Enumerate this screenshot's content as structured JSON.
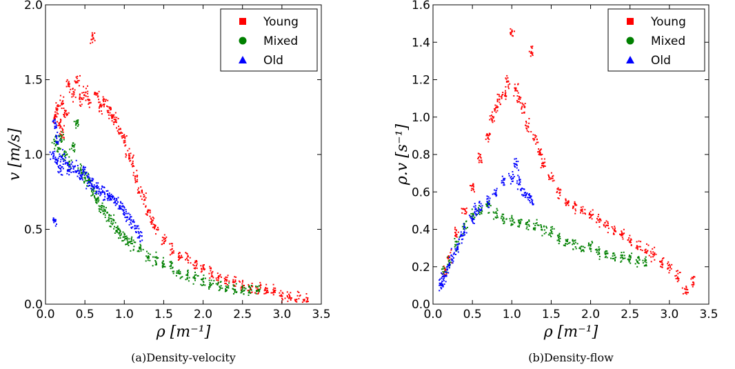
{
  "chart_data": [
    {
      "type": "scatter",
      "caption": "(a)Density-velocity",
      "xlabel": "ρ [m⁻¹]",
      "ylabel": "v [m/s]",
      "xlim": [
        0.0,
        3.5
      ],
      "ylim": [
        0.0,
        2.0
      ],
      "xticks": [
        "0.0",
        "0.5",
        "1.0",
        "1.5",
        "2.0",
        "2.5",
        "3.0",
        "3.5"
      ],
      "yticks": [
        "0.0",
        "0.5",
        "1.0",
        "1.5",
        "2.0"
      ],
      "legend_position": "top-right",
      "grid": false,
      "series": [
        {
          "name": "Young",
          "color": "#ff0000",
          "marker": "square",
          "points": [
            [
              0.12,
              1.25
            ],
            [
              0.15,
              1.3
            ],
            [
              0.18,
              1.2
            ],
            [
              0.2,
              1.35
            ],
            [
              0.22,
              1.15
            ],
            [
              0.25,
              1.28
            ],
            [
              0.3,
              1.45
            ],
            [
              0.35,
              1.4
            ],
            [
              0.4,
              1.5
            ],
            [
              0.45,
              1.38
            ],
            [
              0.5,
              1.42
            ],
            [
              0.55,
              1.35
            ],
            [
              0.6,
              1.78
            ],
            [
              0.65,
              1.4
            ],
            [
              0.7,
              1.32
            ],
            [
              0.75,
              1.35
            ],
            [
              0.8,
              1.3
            ],
            [
              0.85,
              1.25
            ],
            [
              0.9,
              1.22
            ],
            [
              0.95,
              1.15
            ],
            [
              1.0,
              1.1
            ],
            [
              1.05,
              1.0
            ],
            [
              1.1,
              0.95
            ],
            [
              1.15,
              0.85
            ],
            [
              1.2,
              0.75
            ],
            [
              1.25,
              0.7
            ],
            [
              1.3,
              0.62
            ],
            [
              1.35,
              0.55
            ],
            [
              1.4,
              0.5
            ],
            [
              1.5,
              0.42
            ],
            [
              1.6,
              0.36
            ],
            [
              1.7,
              0.32
            ],
            [
              1.8,
              0.3
            ],
            [
              1.9,
              0.27
            ],
            [
              2.0,
              0.24
            ],
            [
              2.1,
              0.21
            ],
            [
              2.2,
              0.18
            ],
            [
              2.3,
              0.16
            ],
            [
              2.4,
              0.14
            ],
            [
              2.5,
              0.12
            ],
            [
              2.6,
              0.11
            ],
            [
              2.7,
              0.1
            ],
            [
              2.8,
              0.09
            ],
            [
              2.9,
              0.08
            ],
            [
              3.0,
              0.06
            ],
            [
              3.1,
              0.05
            ],
            [
              3.2,
              0.04
            ],
            [
              3.3,
              0.03
            ]
          ]
        },
        {
          "name": "Mixed",
          "color": "#008000",
          "marker": "circle",
          "points": [
            [
              0.12,
              1.1
            ],
            [
              0.15,
              1.05
            ],
            [
              0.2,
              1.12
            ],
            [
              0.25,
              1.0
            ],
            [
              0.3,
              0.95
            ],
            [
              0.35,
              1.05
            ],
            [
              0.4,
              1.2
            ],
            [
              0.45,
              0.9
            ],
            [
              0.5,
              0.85
            ],
            [
              0.55,
              0.82
            ],
            [
              0.6,
              0.75
            ],
            [
              0.65,
              0.7
            ],
            [
              0.7,
              0.65
            ],
            [
              0.75,
              0.62
            ],
            [
              0.8,
              0.58
            ],
            [
              0.85,
              0.55
            ],
            [
              0.9,
              0.5
            ],
            [
              0.95,
              0.48
            ],
            [
              1.0,
              0.45
            ],
            [
              1.05,
              0.42
            ],
            [
              1.1,
              0.4
            ],
            [
              1.2,
              0.36
            ],
            [
              1.3,
              0.32
            ],
            [
              1.4,
              0.3
            ],
            [
              1.5,
              0.27
            ],
            [
              1.6,
              0.24
            ],
            [
              1.7,
              0.21
            ],
            [
              1.8,
              0.19
            ],
            [
              1.9,
              0.17
            ],
            [
              2.0,
              0.16
            ],
            [
              2.1,
              0.15
            ],
            [
              2.2,
              0.13
            ],
            [
              2.3,
              0.12
            ],
            [
              2.4,
              0.11
            ],
            [
              2.5,
              0.1
            ],
            [
              2.6,
              0.09
            ],
            [
              2.7,
              0.09
            ]
          ]
        },
        {
          "name": "Old",
          "color": "#0000ff",
          "marker": "triangle",
          "points": [
            [
              0.1,
              1.0
            ],
            [
              0.12,
              1.2
            ],
            [
              0.12,
              0.55
            ],
            [
              0.14,
              0.95
            ],
            [
              0.15,
              1.1
            ],
            [
              0.18,
              0.9
            ],
            [
              0.2,
              0.98
            ],
            [
              0.25,
              0.95
            ],
            [
              0.3,
              0.9
            ],
            [
              0.35,
              0.92
            ],
            [
              0.4,
              0.88
            ],
            [
              0.45,
              0.85
            ],
            [
              0.5,
              0.88
            ],
            [
              0.55,
              0.82
            ],
            [
              0.6,
              0.8
            ],
            [
              0.65,
              0.78
            ],
            [
              0.7,
              0.76
            ],
            [
              0.75,
              0.74
            ],
            [
              0.8,
              0.72
            ],
            [
              0.85,
              0.7
            ],
            [
              0.9,
              0.68
            ],
            [
              0.95,
              0.65
            ],
            [
              1.0,
              0.62
            ],
            [
              1.05,
              0.58
            ],
            [
              1.1,
              0.55
            ],
            [
              1.15,
              0.5
            ],
            [
              1.2,
              0.45
            ]
          ]
        }
      ]
    },
    {
      "type": "scatter",
      "caption": "(b)Density-flow",
      "xlabel": "ρ [m⁻¹]",
      "ylabel": "ρ.v [s⁻¹]",
      "xlim": [
        0.0,
        3.5
      ],
      "ylim": [
        0.0,
        1.6
      ],
      "xticks": [
        "0.0",
        "0.5",
        "1.0",
        "1.5",
        "2.0",
        "2.5",
        "3.0",
        "3.5"
      ],
      "yticks": [
        "0.0",
        "0.2",
        "0.4",
        "0.6",
        "0.8",
        "1.0",
        "1.2",
        "1.4",
        "1.6"
      ],
      "legend_position": "top-right",
      "grid": false,
      "series": [
        {
          "name": "Young",
          "color": "#ff0000",
          "marker": "square",
          "points": [
            [
              0.15,
              0.18
            ],
            [
              0.2,
              0.25
            ],
            [
              0.3,
              0.38
            ],
            [
              0.4,
              0.5
            ],
            [
              0.5,
              0.62
            ],
            [
              0.6,
              0.78
            ],
            [
              0.7,
              0.9
            ],
            [
              0.75,
              1.0
            ],
            [
              0.8,
              1.05
            ],
            [
              0.85,
              1.1
            ],
            [
              0.9,
              1.12
            ],
            [
              0.95,
              1.18
            ],
            [
              1.0,
              1.45
            ],
            [
              1.05,
              1.15
            ],
            [
              1.1,
              1.1
            ],
            [
              1.15,
              1.05
            ],
            [
              1.2,
              0.95
            ],
            [
              1.25,
              1.35
            ],
            [
              1.3,
              0.88
            ],
            [
              1.35,
              0.82
            ],
            [
              1.4,
              0.75
            ],
            [
              1.5,
              0.68
            ],
            [
              1.6,
              0.6
            ],
            [
              1.7,
              0.55
            ],
            [
              1.8,
              0.52
            ],
            [
              1.9,
              0.5
            ],
            [
              2.0,
              0.48
            ],
            [
              2.1,
              0.45
            ],
            [
              2.2,
              0.42
            ],
            [
              2.3,
              0.4
            ],
            [
              2.4,
              0.37
            ],
            [
              2.5,
              0.34
            ],
            [
              2.6,
              0.32
            ],
            [
              2.7,
              0.29
            ],
            [
              2.8,
              0.26
            ],
            [
              2.9,
              0.22
            ],
            [
              3.0,
              0.2
            ],
            [
              3.1,
              0.15
            ],
            [
              3.2,
              0.08
            ],
            [
              3.3,
              0.12
            ]
          ]
        },
        {
          "name": "Mixed",
          "color": "#008000",
          "marker": "circle",
          "points": [
            [
              0.15,
              0.17
            ],
            [
              0.2,
              0.22
            ],
            [
              0.3,
              0.32
            ],
            [
              0.4,
              0.42
            ],
            [
              0.5,
              0.48
            ],
            [
              0.6,
              0.5
            ],
            [
              0.7,
              0.52
            ],
            [
              0.8,
              0.48
            ],
            [
              0.9,
              0.45
            ],
            [
              1.0,
              0.45
            ],
            [
              1.1,
              0.44
            ],
            [
              1.2,
              0.43
            ],
            [
              1.3,
              0.42
            ],
            [
              1.4,
              0.4
            ],
            [
              1.5,
              0.38
            ],
            [
              1.6,
              0.35
            ],
            [
              1.7,
              0.33
            ],
            [
              1.8,
              0.32
            ],
            [
              1.9,
              0.3
            ],
            [
              2.0,
              0.3
            ],
            [
              2.1,
              0.28
            ],
            [
              2.2,
              0.27
            ],
            [
              2.3,
              0.26
            ],
            [
              2.4,
              0.25
            ],
            [
              2.5,
              0.24
            ],
            [
              2.6,
              0.23
            ],
            [
              2.7,
              0.22
            ]
          ]
        },
        {
          "name": "Old",
          "color": "#0000ff",
          "marker": "triangle",
          "points": [
            [
              0.1,
              0.1
            ],
            [
              0.12,
              0.12
            ],
            [
              0.15,
              0.15
            ],
            [
              0.2,
              0.2
            ],
            [
              0.25,
              0.25
            ],
            [
              0.3,
              0.3
            ],
            [
              0.35,
              0.35
            ],
            [
              0.4,
              0.4
            ],
            [
              0.5,
              0.45
            ],
            [
              0.55,
              0.5
            ],
            [
              0.6,
              0.52
            ],
            [
              0.7,
              0.55
            ],
            [
              0.8,
              0.6
            ],
            [
              0.9,
              0.65
            ],
            [
              1.0,
              0.68
            ],
            [
              1.05,
              0.75
            ],
            [
              1.1,
              0.65
            ],
            [
              1.15,
              0.6
            ],
            [
              1.2,
              0.58
            ],
            [
              1.25,
              0.55
            ]
          ]
        }
      ]
    }
  ]
}
